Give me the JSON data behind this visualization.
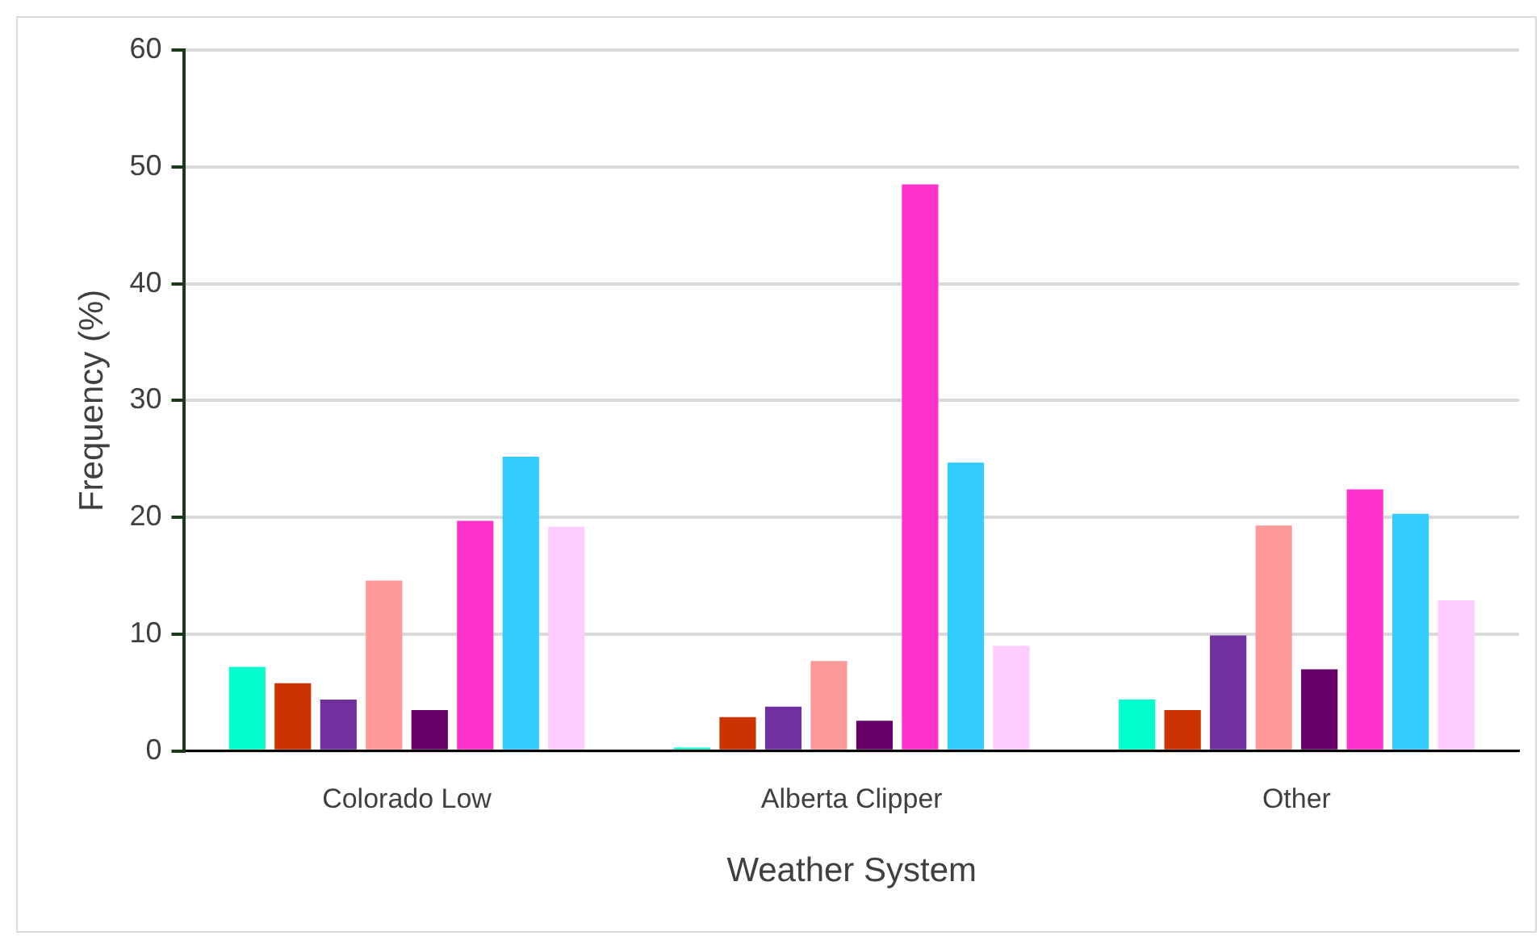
{
  "chart_data": {
    "type": "bar",
    "xlabel": "Weather System",
    "ylabel": "Frequency (%)",
    "categories": [
      "Colorado Low",
      "Alberta Clipper",
      "Other"
    ],
    "series": [
      {
        "color": "#00ffcc",
        "values": [
          7.2,
          0.3,
          4.4
        ]
      },
      {
        "color": "#cc3300",
        "values": [
          5.8,
          2.9,
          3.5
        ]
      },
      {
        "color": "#7030a0",
        "values": [
          4.4,
          3.8,
          9.9
        ]
      },
      {
        "color": "#ff9999",
        "values": [
          14.6,
          7.7,
          19.3
        ]
      },
      {
        "color": "#660066",
        "values": [
          3.5,
          2.6,
          7.0
        ]
      },
      {
        "color": "#ff33cc",
        "values": [
          19.7,
          48.5,
          22.4
        ]
      },
      {
        "color": "#33ccff",
        "values": [
          25.2,
          24.7,
          20.3
        ]
      },
      {
        "color": "#ffccff",
        "values": [
          19.2,
          9.0,
          12.9
        ]
      }
    ],
    "ylim": [
      0,
      60
    ],
    "yticks": [
      0,
      10,
      20,
      30,
      40,
      50,
      60
    ],
    "grid": "y",
    "legend": false
  }
}
